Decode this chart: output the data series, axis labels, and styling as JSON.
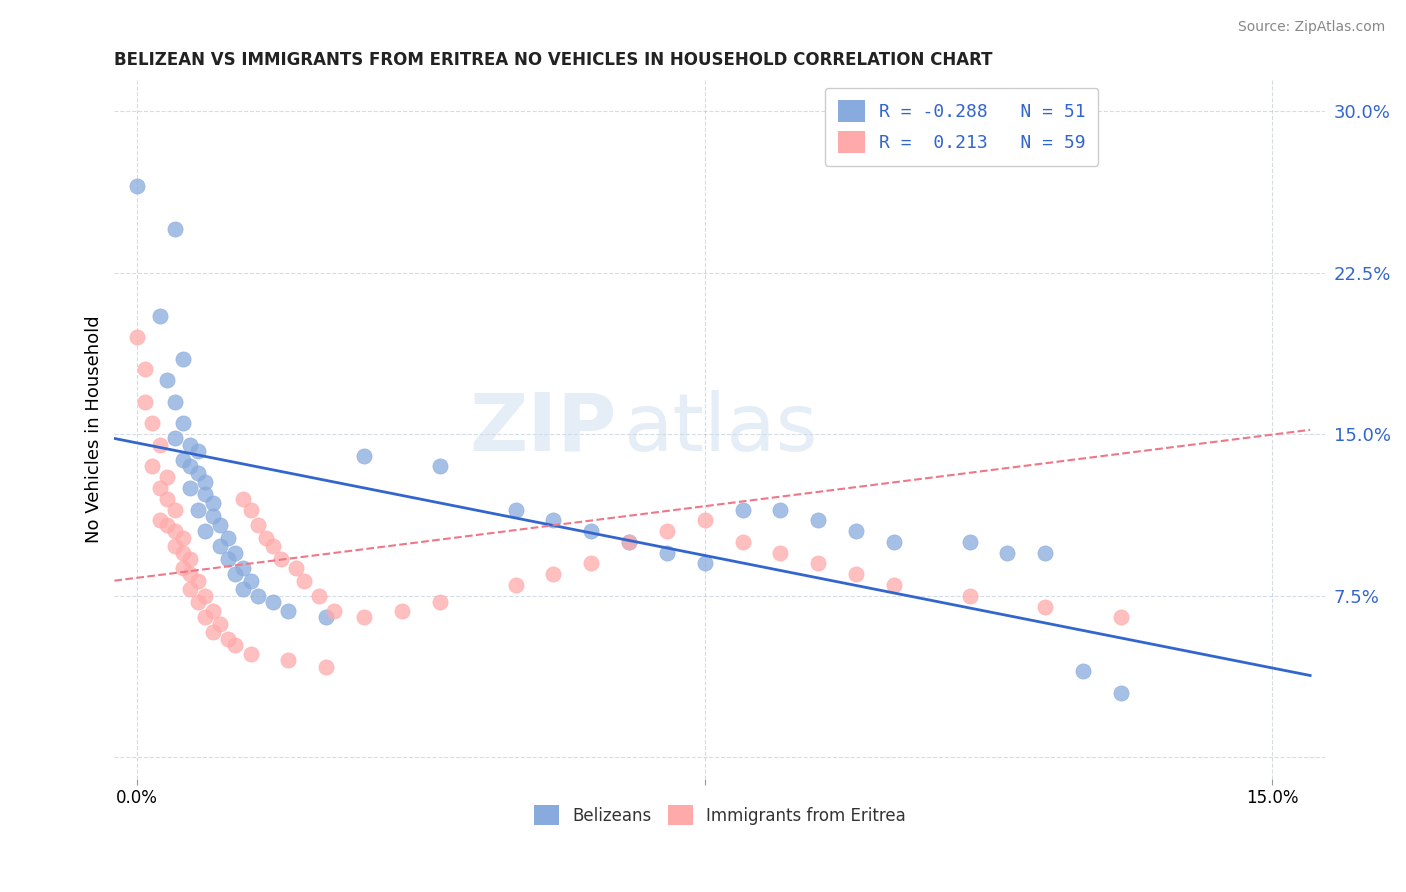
{
  "title": "BELIZEAN VS IMMIGRANTS FROM ERITREA NO VEHICLES IN HOUSEHOLD CORRELATION CHART",
  "source": "Source: ZipAtlas.com",
  "ylabel": "No Vehicles in Household",
  "blue_color": "#88AADD",
  "pink_color": "#FFAAAA",
  "blue_line_color": "#3366CC",
  "pink_line_color": "#EE7788",
  "watermark_zip": "ZIP",
  "watermark_atlas": "atlas",
  "blue_points": [
    [
      0.0,
      0.265
    ],
    [
      0.005,
      0.245
    ],
    [
      0.003,
      0.205
    ],
    [
      0.006,
      0.185
    ],
    [
      0.004,
      0.175
    ],
    [
      0.005,
      0.165
    ],
    [
      0.006,
      0.155
    ],
    [
      0.005,
      0.148
    ],
    [
      0.007,
      0.145
    ],
    [
      0.008,
      0.142
    ],
    [
      0.006,
      0.138
    ],
    [
      0.007,
      0.135
    ],
    [
      0.008,
      0.132
    ],
    [
      0.009,
      0.128
    ],
    [
      0.007,
      0.125
    ],
    [
      0.009,
      0.122
    ],
    [
      0.01,
      0.118
    ],
    [
      0.008,
      0.115
    ],
    [
      0.01,
      0.112
    ],
    [
      0.011,
      0.108
    ],
    [
      0.009,
      0.105
    ],
    [
      0.012,
      0.102
    ],
    [
      0.011,
      0.098
    ],
    [
      0.013,
      0.095
    ],
    [
      0.012,
      0.092
    ],
    [
      0.014,
      0.088
    ],
    [
      0.013,
      0.085
    ],
    [
      0.015,
      0.082
    ],
    [
      0.014,
      0.078
    ],
    [
      0.016,
      0.075
    ],
    [
      0.018,
      0.072
    ],
    [
      0.02,
      0.068
    ],
    [
      0.025,
      0.065
    ],
    [
      0.03,
      0.14
    ],
    [
      0.04,
      0.135
    ],
    [
      0.05,
      0.115
    ],
    [
      0.055,
      0.11
    ],
    [
      0.06,
      0.105
    ],
    [
      0.065,
      0.1
    ],
    [
      0.07,
      0.095
    ],
    [
      0.075,
      0.09
    ],
    [
      0.08,
      0.115
    ],
    [
      0.085,
      0.115
    ],
    [
      0.09,
      0.11
    ],
    [
      0.095,
      0.105
    ],
    [
      0.1,
      0.1
    ],
    [
      0.11,
      0.1
    ],
    [
      0.115,
      0.095
    ],
    [
      0.12,
      0.095
    ],
    [
      0.125,
      0.04
    ],
    [
      0.13,
      0.03
    ]
  ],
  "pink_points": [
    [
      0.0,
      0.195
    ],
    [
      0.001,
      0.165
    ],
    [
      0.002,
      0.155
    ],
    [
      0.001,
      0.18
    ],
    [
      0.003,
      0.145
    ],
    [
      0.002,
      0.135
    ],
    [
      0.004,
      0.13
    ],
    [
      0.003,
      0.125
    ],
    [
      0.004,
      0.12
    ],
    [
      0.005,
      0.115
    ],
    [
      0.003,
      0.11
    ],
    [
      0.004,
      0.108
    ],
    [
      0.005,
      0.105
    ],
    [
      0.006,
      0.102
    ],
    [
      0.005,
      0.098
    ],
    [
      0.006,
      0.095
    ],
    [
      0.007,
      0.092
    ],
    [
      0.006,
      0.088
    ],
    [
      0.007,
      0.085
    ],
    [
      0.008,
      0.082
    ],
    [
      0.007,
      0.078
    ],
    [
      0.009,
      0.075
    ],
    [
      0.008,
      0.072
    ],
    [
      0.01,
      0.068
    ],
    [
      0.009,
      0.065
    ],
    [
      0.011,
      0.062
    ],
    [
      0.01,
      0.058
    ],
    [
      0.012,
      0.055
    ],
    [
      0.013,
      0.052
    ],
    [
      0.015,
      0.048
    ],
    [
      0.02,
      0.045
    ],
    [
      0.025,
      0.042
    ],
    [
      0.03,
      0.065
    ],
    [
      0.035,
      0.068
    ],
    [
      0.04,
      0.072
    ],
    [
      0.05,
      0.08
    ],
    [
      0.055,
      0.085
    ],
    [
      0.06,
      0.09
    ],
    [
      0.065,
      0.1
    ],
    [
      0.07,
      0.105
    ],
    [
      0.075,
      0.11
    ],
    [
      0.08,
      0.1
    ],
    [
      0.085,
      0.095
    ],
    [
      0.09,
      0.09
    ],
    [
      0.095,
      0.085
    ],
    [
      0.1,
      0.08
    ],
    [
      0.11,
      0.075
    ],
    [
      0.12,
      0.07
    ],
    [
      0.13,
      0.065
    ],
    [
      0.014,
      0.12
    ],
    [
      0.015,
      0.115
    ],
    [
      0.016,
      0.108
    ],
    [
      0.017,
      0.102
    ],
    [
      0.018,
      0.098
    ],
    [
      0.019,
      0.092
    ],
    [
      0.021,
      0.088
    ],
    [
      0.022,
      0.082
    ],
    [
      0.024,
      0.075
    ],
    [
      0.026,
      0.068
    ]
  ]
}
